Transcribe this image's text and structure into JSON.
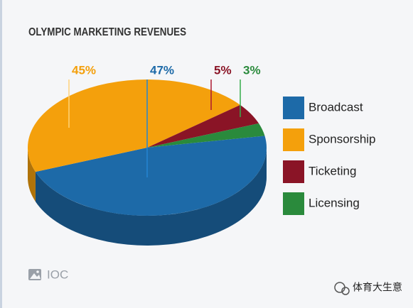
{
  "chart_data": {
    "type": "pie3d",
    "title": "OLYMPIC MARKETING REVENUES",
    "categories": [
      "Broadcast",
      "Sponsorship",
      "Ticketing",
      "Licensing"
    ],
    "values": [
      47,
      45,
      5,
      3
    ],
    "value_labels": [
      "47%",
      "45%",
      "5%",
      "3%"
    ],
    "colors": [
      "#1d6aa8",
      "#f4a00c",
      "#8a1426",
      "#2a8a3c"
    ],
    "legend": "right",
    "source": "IOC",
    "watermark": "体育大生意"
  }
}
